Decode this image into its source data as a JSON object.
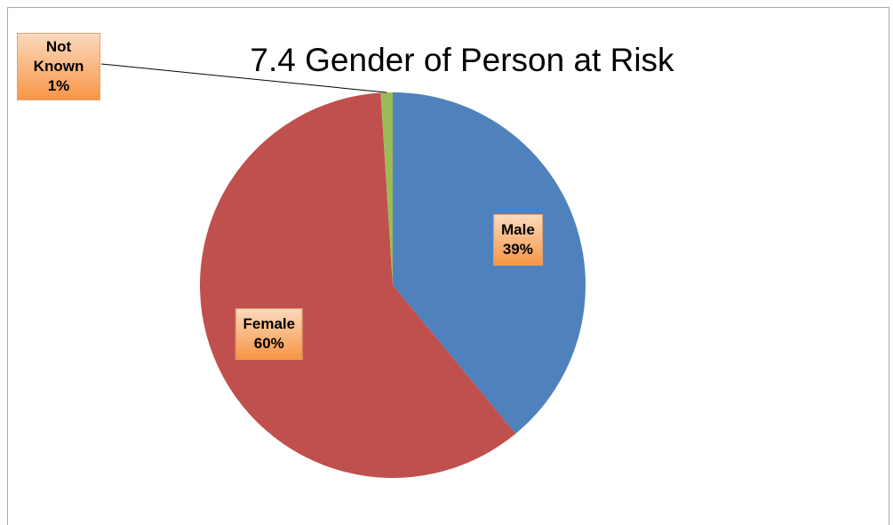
{
  "chart_data": {
    "type": "pie",
    "title": "7.4 Gender of Person at Risk",
    "categories": [
      "Male",
      "Female",
      "Not Known"
    ],
    "values": [
      39,
      60,
      1
    ],
    "value_labels": [
      "39%",
      "60%",
      "1%"
    ],
    "colors": [
      "#4f81bd",
      "#c0504d",
      "#9bbb59"
    ]
  }
}
